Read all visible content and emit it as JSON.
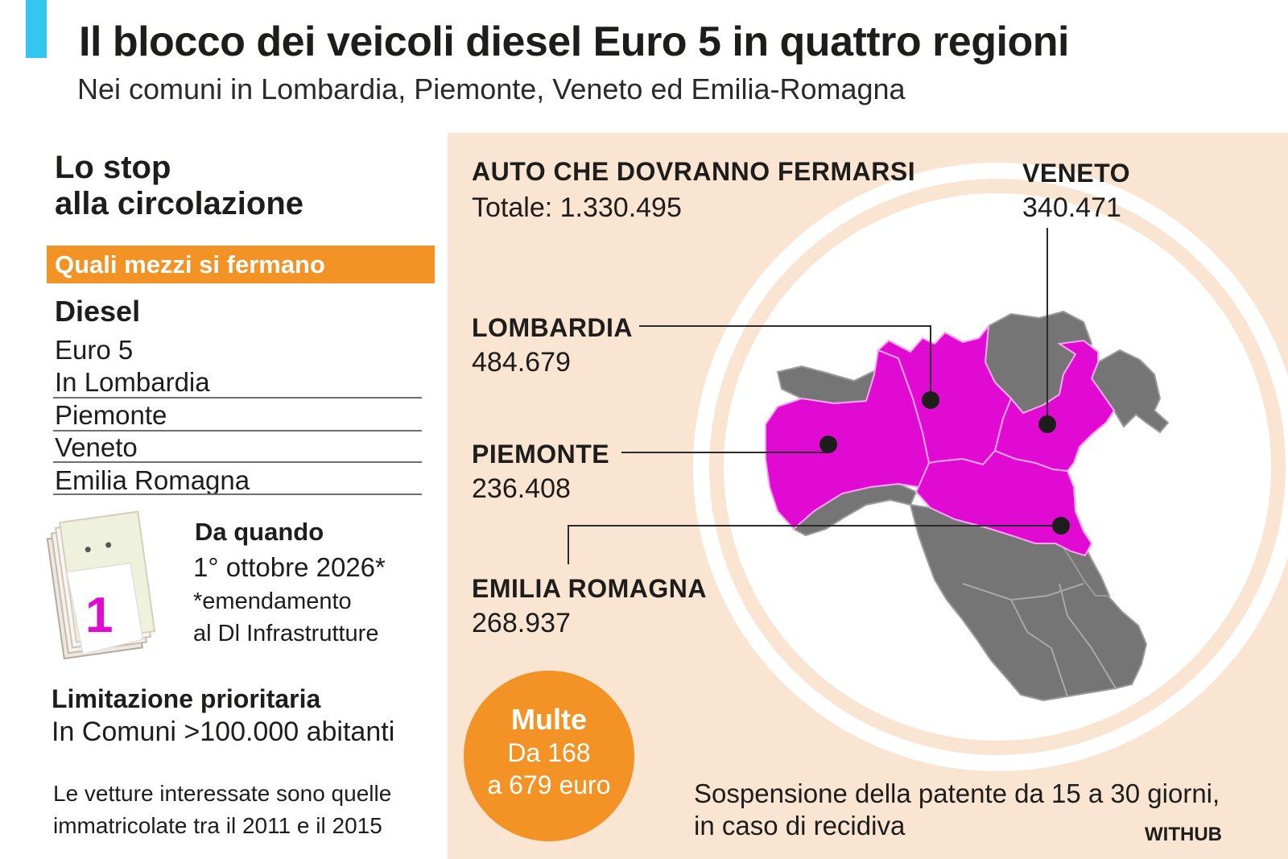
{
  "header": {
    "title": "Il blocco dei veicoli diesel Euro 5 in quattro regioni",
    "subtitle": "Nei comuni in Lombardia, Piemonte, Veneto ed Emilia-Romagna"
  },
  "left": {
    "section_title_line1": "Lo stop",
    "section_title_line2": "alla circolazione",
    "band_label": "Quali mezzi si fermano",
    "fuel": "Diesel",
    "lines": [
      "Euro 5",
      "In Lombardia",
      "Piemonte",
      "Veneto",
      "Emilia Romagna"
    ],
    "calendar": {
      "digit": "1",
      "icon": "calendar-icon"
    },
    "da_quando": "Da quando",
    "date": "1° ottobre 2026*",
    "note_line1": "*emendamento",
    "note_line2": "al Dl Infrastrutture",
    "limitation_title": "Limitazione prioritaria",
    "limitation_text": "In Comuni >100.000 abitanti",
    "footnote_line1": "Le vetture interessate sono quelle",
    "footnote_line2": "immatricolate tra il 2011 e il 2015"
  },
  "map": {
    "total_title": "AUTO CHE DOVRANNO FERMARSI",
    "total_value": "Totale: 1.330.495",
    "regions": [
      {
        "name": "VENETO",
        "value": "340.471"
      },
      {
        "name": "LOMBARDIA",
        "value": "484.679"
      },
      {
        "name": "PIEMONTE",
        "value": "236.408"
      },
      {
        "name": "EMILIA ROMAGNA",
        "value": "268.937"
      }
    ],
    "multe_title": "Multe",
    "multe_line1": "Da 168",
    "multe_line2": "a 679 euro",
    "suspension_line1": "Sospensione della patente da 15 a 30 giorni,",
    "suspension_line2": "in caso di recidiva",
    "credit": "WITHUB",
    "colors": {
      "highlight": "#e10ad2",
      "other": "#757575",
      "accent": "#f39325",
      "title_bar": "#33c6ee",
      "panel": "#fae5d3"
    }
  }
}
